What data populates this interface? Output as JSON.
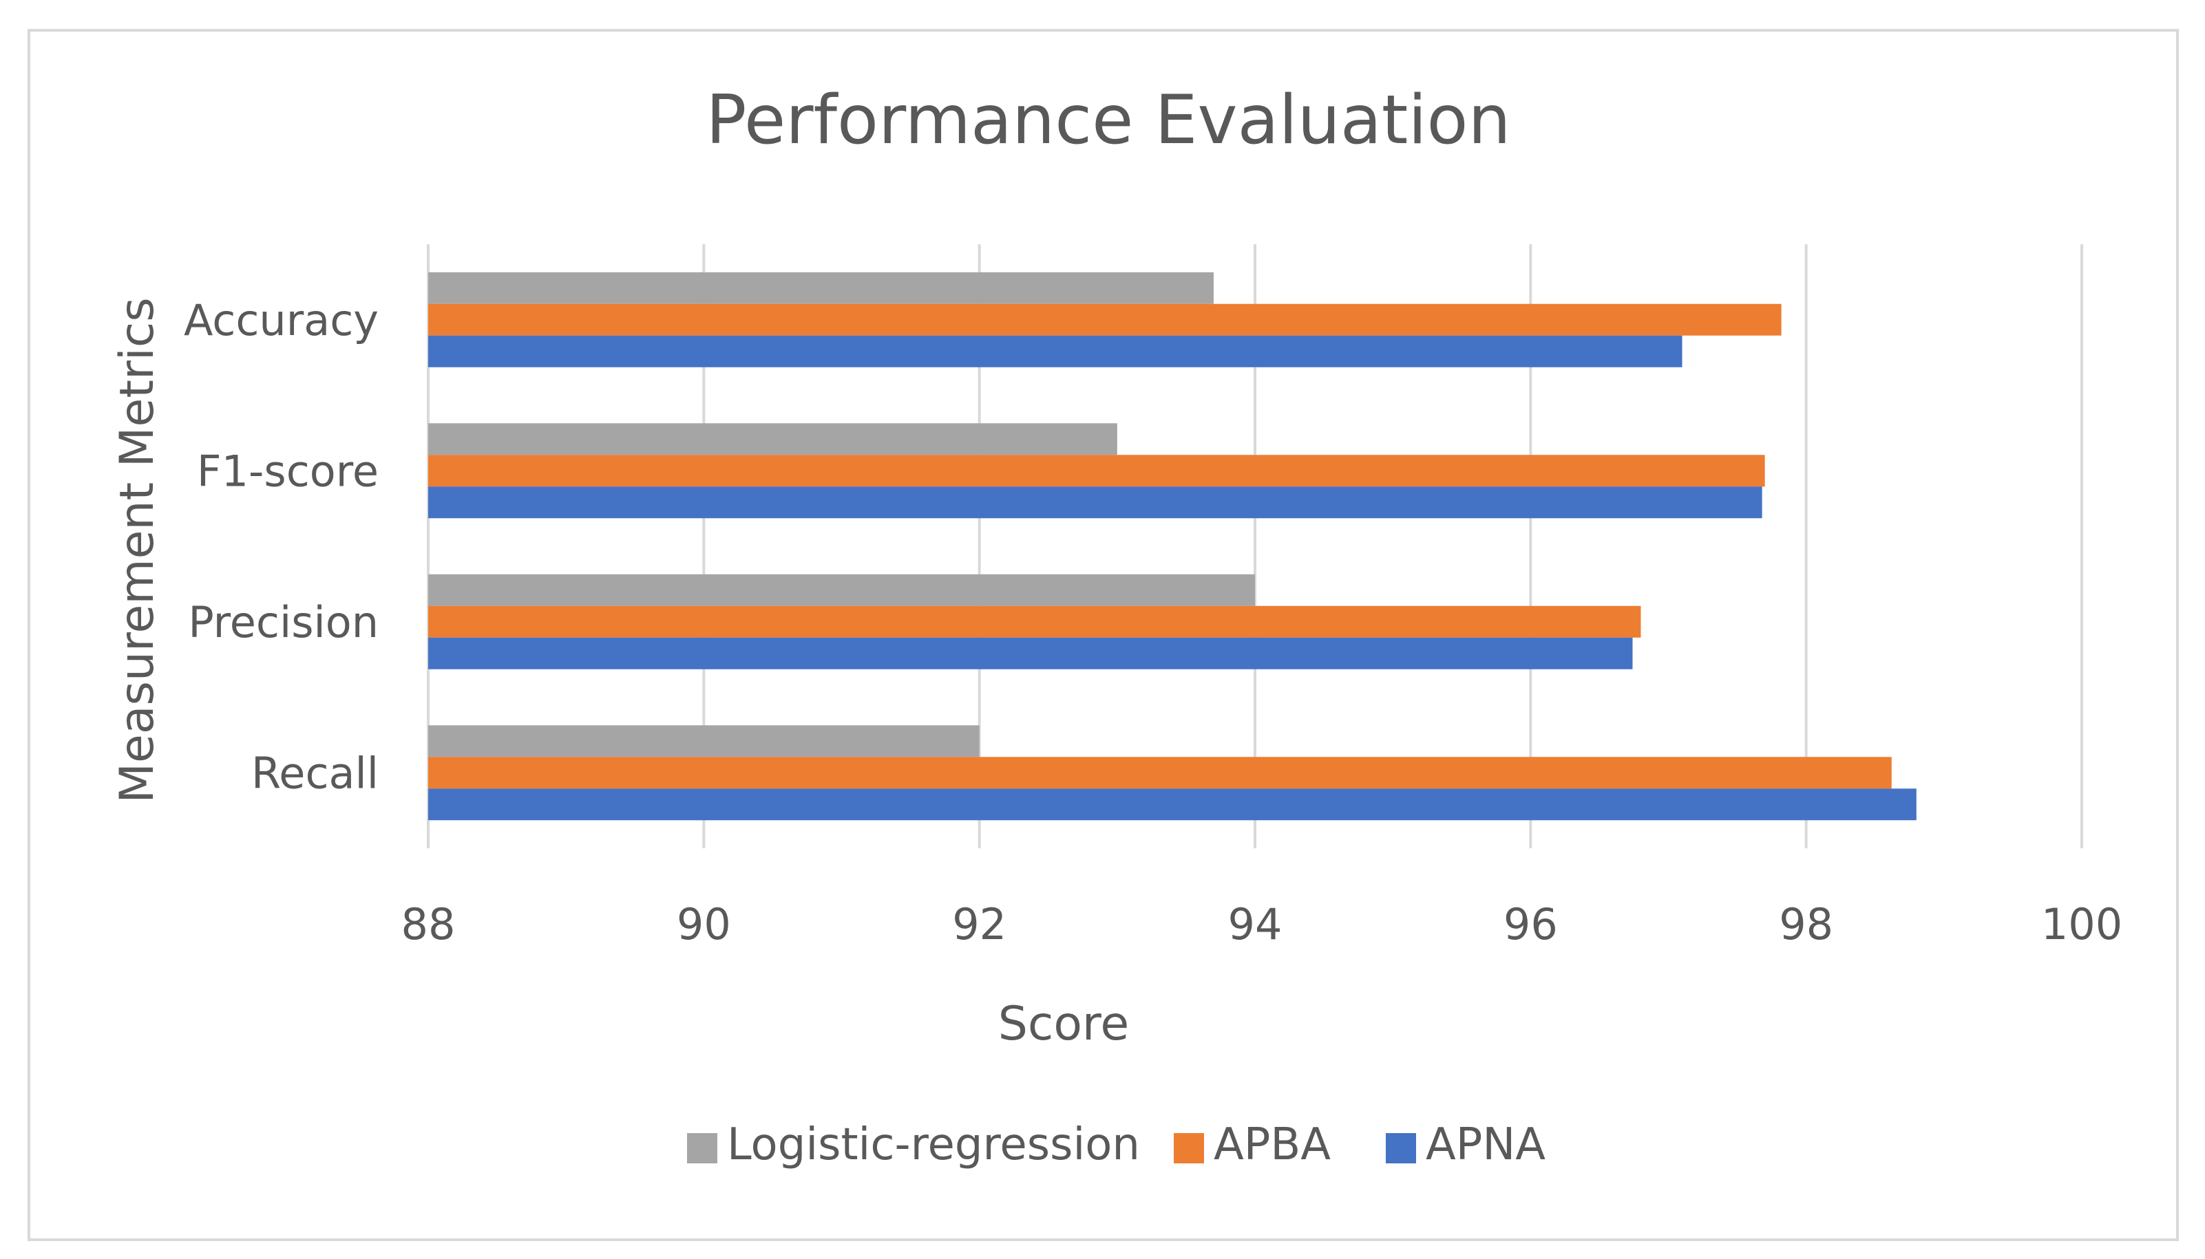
{
  "chart_data": {
    "type": "bar",
    "orientation": "horizontal",
    "title": "Performance Evaluation",
    "xlabel": "Score",
    "ylabel": "Measurement Metrics",
    "xlim": [
      88,
      100
    ],
    "xticks": [
      88,
      90,
      92,
      94,
      96,
      98,
      100
    ],
    "categories": [
      "Accuracy",
      "F1-score",
      "Precision",
      "Recall"
    ],
    "series": [
      {
        "name": "Logistic-regression",
        "color": "#a5a5a5",
        "values": [
          93.7,
          93.0,
          94.0,
          92.0
        ]
      },
      {
        "name": "APBA",
        "color": "#ed7d31",
        "values": [
          97.82,
          97.7,
          96.8,
          98.62
        ]
      },
      {
        "name": "APNA",
        "color": "#4472c4",
        "values": [
          97.1,
          97.68,
          96.74,
          98.8
        ]
      }
    ],
    "grid": true,
    "legend_position": "bottom"
  }
}
